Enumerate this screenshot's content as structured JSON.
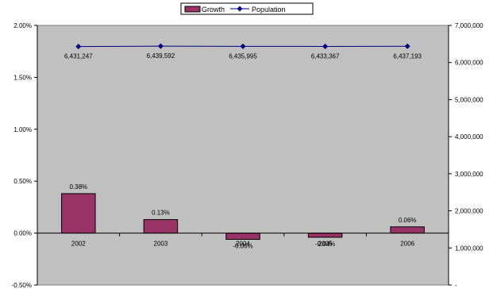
{
  "chart_data": {
    "type": "bar",
    "categories": [
      "2002",
      "2003",
      "2004",
      "2005",
      "2006"
    ],
    "series": [
      {
        "name": "Growth",
        "type": "bar",
        "axis": "left",
        "values": [
          0.38,
          0.13,
          -0.06,
          -0.04,
          0.06
        ],
        "labels": [
          "0.38%",
          "0.13%",
          "-0.06%",
          "-0.04%",
          "0.06%"
        ],
        "color": "#993366"
      },
      {
        "name": "Population",
        "type": "line",
        "axis": "right",
        "values": [
          6431247,
          6439592,
          6435995,
          6433367,
          6437193
        ],
        "labels": [
          "6,431,247",
          "6,439,592",
          "6,435,995",
          "6,433,367",
          "6,437,193"
        ],
        "color": "#000080"
      }
    ],
    "y_left": {
      "ylim": [
        -0.5,
        2.0
      ],
      "ticks": [
        -0.5,
        0,
        0.5,
        1.0,
        1.5,
        2.0
      ],
      "tick_labels": [
        "-0.50%",
        "0.00%",
        "0.50%",
        "1.00%",
        "1.50%",
        "2.00%"
      ]
    },
    "y_right": {
      "ylim": [
        0,
        7000000
      ],
      "ticks": [
        0,
        1000000,
        2000000,
        3000000,
        4000000,
        5000000,
        6000000,
        7000000
      ],
      "tick_labels": [
        "-",
        "1,000,000",
        "2,000,000",
        "3,000,000",
        "4,000,000",
        "5,000,000",
        "6,000,000",
        "7,000,000"
      ]
    },
    "title": "",
    "xlabel": "",
    "ylabel": "",
    "legend": {
      "position": "top-center",
      "entries": [
        "Growth",
        "Population"
      ]
    },
    "plot_background": "#c0c0c0",
    "grid": false
  }
}
